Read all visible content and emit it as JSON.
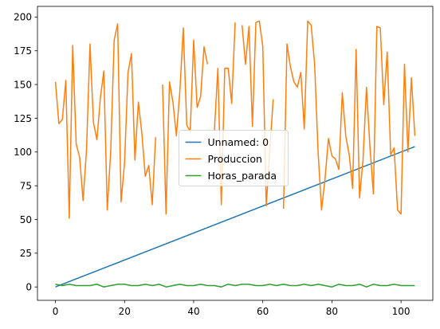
{
  "chart_data": {
    "type": "line",
    "title": "",
    "xlabel": "",
    "ylabel": "",
    "xlim": [
      -5.2,
      109.2
    ],
    "ylim": [
      -9.9,
      207.9
    ],
    "xticks": [
      0,
      20,
      40,
      60,
      80,
      100
    ],
    "yticks": [
      0,
      25,
      50,
      75,
      100,
      125,
      150,
      175,
      200
    ],
    "grid": false,
    "legend_position": "center",
    "series": [
      {
        "name": "Unnamed: 0",
        "color": "#1f77b4",
        "x": [
          0,
          104
        ],
        "y": [
          0,
          104
        ]
      },
      {
        "name": "Produccion",
        "color": "#ff7f0e",
        "x": [
          0,
          1,
          2,
          3,
          4,
          5,
          6,
          7,
          8,
          9,
          10,
          11,
          12,
          13,
          14,
          15,
          16,
          17,
          18,
          19,
          20,
          21,
          22,
          23,
          24,
          25,
          26,
          27,
          28,
          29,
          30,
          31,
          32,
          33,
          34,
          35,
          36,
          37,
          38,
          39,
          40,
          41,
          42,
          43,
          44,
          45,
          46,
          47,
          48,
          49,
          50,
          51,
          52,
          53,
          54,
          55,
          56,
          57,
          58,
          59,
          60,
          61,
          62,
          63,
          64,
          65,
          66,
          67,
          68,
          69,
          70,
          71,
          72,
          73,
          74,
          75,
          76,
          77,
          78,
          79,
          80,
          81,
          82,
          83,
          84,
          85,
          86,
          87,
          88,
          89,
          90,
          91,
          92,
          93,
          94,
          95,
          96,
          97,
          98,
          99,
          100,
          101,
          102,
          103,
          104
        ],
        "y": [
          152,
          121,
          124,
          153,
          51,
          179,
          106,
          96,
          64,
          102,
          180,
          122,
          109,
          140,
          160,
          57,
          101,
          183,
          195,
          63,
          92,
          159,
          173,
          94,
          137,
          114,
          82,
          90,
          61,
          111,
          null,
          150,
          54,
          152,
          137,
          112,
          145,
          192,
          120,
          115,
          183,
          133,
          141,
          178,
          165,
          null,
          116,
          162,
          61,
          162,
          162,
          136,
          196,
          null,
          194,
          165,
          193,
          119,
          196,
          197,
          178,
          60,
          100,
          139,
          null,
          null,
          58,
          180,
          163,
          152,
          148,
          159,
          117,
          197,
          194,
          165,
          100,
          57,
          80,
          110,
          97,
          95,
          87,
          144,
          112,
          98,
          73,
          176,
          66,
          94,
          148,
          104,
          69,
          193,
          192,
          135,
          174,
          98,
          103,
          57,
          54,
          165,
          100,
          155,
          112
        ]
      },
      {
        "name": "Horas_parada",
        "color": "#2ca02c",
        "x": [
          0,
          2,
          4,
          6,
          8,
          10,
          12,
          14,
          16,
          18,
          20,
          22,
          24,
          26,
          28,
          30,
          32,
          34,
          36,
          38,
          40,
          42,
          44,
          46,
          48,
          50,
          52,
          54,
          56,
          58,
          60,
          62,
          64,
          66,
          68,
          70,
          72,
          74,
          76,
          78,
          80,
          82,
          84,
          86,
          88,
          90,
          92,
          94,
          96,
          98,
          100,
          102,
          104
        ],
        "y": [
          2,
          1,
          2,
          1,
          1,
          1,
          2,
          0,
          1,
          2,
          2,
          1,
          1,
          2,
          1,
          2,
          0,
          1,
          2,
          1,
          1,
          2,
          1,
          1,
          0,
          2,
          1,
          2,
          2,
          1,
          1,
          2,
          1,
          2,
          1,
          1,
          2,
          1,
          2,
          1,
          0,
          2,
          1,
          1,
          2,
          0,
          2,
          1,
          1,
          2,
          1,
          1,
          1
        ]
      }
    ]
  }
}
